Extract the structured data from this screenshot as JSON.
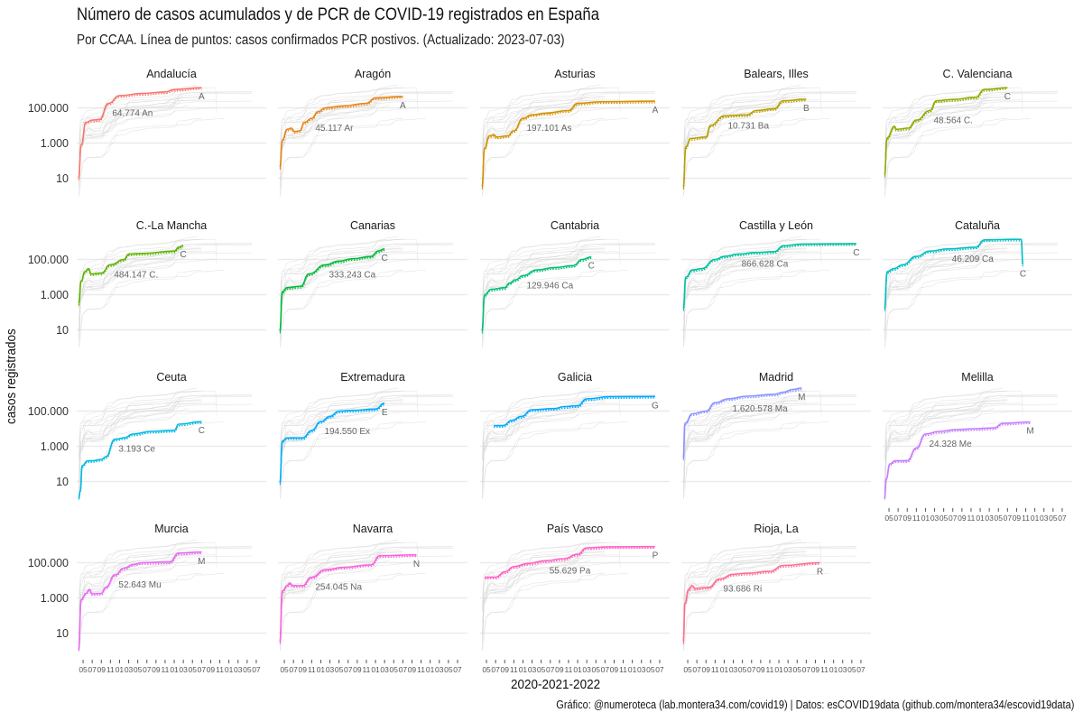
{
  "chart_data": {
    "type": "line",
    "title": "Número de casos acumulados y de PCR de COVID-19 registrados en España",
    "subtitle": "Por CCAA. Línea de puntos: casos confirmados PCR postivos. (Actualizado: 2023-07-03)",
    "xlabel": "2020-2021-2022",
    "ylabel": "casos registrados",
    "caption": "Gráfico: @numeroteca (lab.montera34.com/covid19) | Datos: esCOVID19data (github.com/montera34/escovid19data)",
    "y_scale": "log10",
    "ylim": [
      1,
      1000000
    ],
    "y_ticks": [
      {
        "value": 100000,
        "label": "100.000"
      },
      {
        "value": 1000,
        "label": "1.000"
      },
      {
        "value": 10,
        "label": "10"
      }
    ],
    "x_tick_labels": [
      "05",
      "07",
      "09",
      "11",
      "01",
      "03",
      "05",
      "07",
      "09",
      "11",
      "01",
      "03",
      "05",
      "07",
      "09",
      "11",
      "01",
      "03",
      "05",
      "07"
    ],
    "x_range_months": [
      0,
      20
    ],
    "grid": true,
    "legend": "none",
    "facets": [
      {
        "name": "Andalucía",
        "color": "#F8766D",
        "end_month": 13.5,
        "label": "64.774 An",
        "label_short": "A",
        "final_cases": 1500000,
        "points": [
          [
            0,
            10
          ],
          [
            0.3,
            800
          ],
          [
            0.8,
            15000
          ],
          [
            1.5,
            20000
          ],
          [
            2.3,
            22000
          ],
          [
            3.3,
            180000
          ],
          [
            4.5,
            500000
          ],
          [
            7,
            650000
          ],
          [
            9.5,
            800000
          ],
          [
            10.5,
            1100000
          ],
          [
            13.5,
            1400000
          ]
        ]
      },
      {
        "name": "Aragón",
        "color": "#E7861B",
        "end_month": 13.5,
        "label": "45.117 Ar",
        "label_short": "A",
        "final_cases": 420000,
        "points": [
          [
            0,
            40
          ],
          [
            0.3,
            1500
          ],
          [
            0.8,
            6000
          ],
          [
            1.3,
            7000
          ],
          [
            1.6,
            4500
          ],
          [
            2.2,
            5000
          ],
          [
            2.7,
            15000
          ],
          [
            3.5,
            25000
          ],
          [
            4.2,
            60000
          ],
          [
            5,
            100000
          ],
          [
            7,
            130000
          ],
          [
            9.5,
            180000
          ],
          [
            10.5,
            370000
          ],
          [
            13.5,
            450000
          ]
        ]
      },
      {
        "name": "Asturias",
        "color": "#D39200",
        "end_month": 19,
        "label": "197.101 As",
        "label_short": "A",
        "final_cases": 250000,
        "points": [
          [
            0,
            3
          ],
          [
            0.3,
            500
          ],
          [
            0.8,
            2500
          ],
          [
            1.3,
            3000
          ],
          [
            1.6,
            2200
          ],
          [
            2.8,
            2500
          ],
          [
            3.5,
            5000
          ],
          [
            4.5,
            25000
          ],
          [
            5.5,
            40000
          ],
          [
            7,
            50000
          ],
          [
            9.5,
            70000
          ],
          [
            10.5,
            180000
          ],
          [
            13,
            220000
          ],
          [
            19,
            240000
          ]
        ]
      },
      {
        "name": "Balears, Illes",
        "color": "#B79F00",
        "end_month": 13.5,
        "label": "10.731 Ba",
        "label_short": "B",
        "final_cases": 330000,
        "points": [
          [
            0,
            3
          ],
          [
            0.3,
            600
          ],
          [
            0.8,
            1800
          ],
          [
            2.5,
            2200
          ],
          [
            3,
            10000
          ],
          [
            4.5,
            35000
          ],
          [
            7,
            40000
          ],
          [
            8,
            70000
          ],
          [
            10,
            90000
          ],
          [
            11,
            250000
          ],
          [
            13.5,
            310000
          ]
        ]
      },
      {
        "name": "C. Valenciana",
        "color": "#93AA00",
        "end_month": 13.5,
        "label": "48.564 C.",
        "label_short": "C",
        "final_cases": 1600000,
        "points": [
          [
            0,
            15
          ],
          [
            0.3,
            2000
          ],
          [
            1.1,
            9000
          ],
          [
            1.3,
            6000
          ],
          [
            2.6,
            7000
          ],
          [
            3.5,
            20000
          ],
          [
            5,
            70000
          ],
          [
            5.7,
            250000
          ],
          [
            7.5,
            300000
          ],
          [
            10,
            400000
          ],
          [
            11,
            1100000
          ],
          [
            13.5,
            1400000
          ]
        ]
      },
      {
        "name": "C.-La Mancha",
        "color": "#5EB300",
        "end_month": 13.5,
        "label": "484.147 C.",
        "label_short": "C",
        "final_cases": 650000,
        "points": [
          [
            0,
            300
          ],
          [
            0.3,
            6000
          ],
          [
            0.7,
            20000
          ],
          [
            1.1,
            30000
          ],
          [
            1.4,
            15000
          ],
          [
            2.5,
            17000
          ],
          [
            3.5,
            50000
          ],
          [
            5,
            100000
          ],
          [
            5.5,
            200000
          ],
          [
            7,
            220000
          ],
          [
            10.5,
            300000
          ],
          [
            11,
            500000
          ],
          [
            11.5,
            620000
          ]
        ]
      },
      {
        "name": "Canarias",
        "color": "#00BA38",
        "end_month": 13.5,
        "label": "333.243 Ca",
        "label_short": "C",
        "final_cases": 500000,
        "points": [
          [
            0,
            8
          ],
          [
            0.3,
            1500
          ],
          [
            0.8,
            2500
          ],
          [
            2.3,
            3000
          ],
          [
            3.2,
            15000
          ],
          [
            5,
            50000
          ],
          [
            6.5,
            80000
          ],
          [
            8,
            110000
          ],
          [
            10,
            150000
          ],
          [
            10.8,
            300000
          ],
          [
            11.5,
            400000
          ]
        ]
      },
      {
        "name": "Cantabria",
        "color": "#00BF74",
        "end_month": 13,
        "label": "129.946 Ca",
        "label_short": "C",
        "final_cases": 220000,
        "points": [
          [
            0,
            8
          ],
          [
            0.3,
            1000
          ],
          [
            1,
            2000
          ],
          [
            2.5,
            2500
          ],
          [
            3,
            4500
          ],
          [
            3.7,
            7000
          ],
          [
            4.5,
            12000
          ],
          [
            6,
            25000
          ],
          [
            8,
            35000
          ],
          [
            10,
            45000
          ],
          [
            11,
            100000
          ],
          [
            12,
            140000
          ]
        ]
      },
      {
        "name": "Castilla y León",
        "color": "#00C19F",
        "end_month": 19,
        "label": "866.628 Ca",
        "label_short": "C",
        "final_cases": 870000,
        "points": [
          [
            0,
            150
          ],
          [
            0.3,
            10000
          ],
          [
            1,
            25000
          ],
          [
            2,
            30000
          ],
          [
            3.5,
            100000
          ],
          [
            4.5,
            150000
          ],
          [
            6,
            200000
          ],
          [
            8,
            250000
          ],
          [
            10,
            280000
          ],
          [
            11,
            600000
          ],
          [
            13,
            750000
          ],
          [
            19,
            800000
          ]
        ]
      },
      {
        "name": "Cataluña",
        "color": "#00BFC4",
        "end_month": 16,
        "label": "46.209 Ca",
        "label_short": "C",
        "final_cases": 2700000,
        "points": [
          [
            0,
            150
          ],
          [
            0.3,
            20000
          ],
          [
            1,
            30000
          ],
          [
            2,
            50000
          ],
          [
            3.5,
            150000
          ],
          [
            5,
            300000
          ],
          [
            7,
            400000
          ],
          [
            10,
            500000
          ],
          [
            11,
            1300000
          ],
          [
            14,
            1400000
          ],
          [
            15,
            1400000
          ],
          [
            15.2,
            50000
          ]
        ]
      },
      {
        "name": "Ceuta",
        "color": "#00B9E3",
        "end_month": 13.5,
        "label": "3.193 Ce",
        "label_short": "C",
        "final_cases": 24000,
        "points": [
          [
            0,
            1
          ],
          [
            0.2,
            3
          ],
          [
            0.4,
            80
          ],
          [
            1,
            150
          ],
          [
            1.5,
            150
          ],
          [
            2.5,
            180
          ],
          [
            3,
            250
          ],
          [
            4,
            2500
          ],
          [
            5,
            3000
          ],
          [
            6,
            5000
          ],
          [
            8,
            7000
          ],
          [
            10.5,
            8000
          ],
          [
            11,
            18000
          ],
          [
            13.5,
            25000
          ]
        ]
      },
      {
        "name": "Extremadura",
        "color": "#00ADFA",
        "end_month": 13.5,
        "label": "194.550 Ex",
        "label_short": "E",
        "final_cases": 300000,
        "points": [
          [
            0,
            8
          ],
          [
            0.3,
            2000
          ],
          [
            0.8,
            3000
          ],
          [
            2.5,
            3000
          ],
          [
            3.5,
            8000
          ],
          [
            4.5,
            25000
          ],
          [
            5.5,
            50000
          ],
          [
            6.5,
            100000
          ],
          [
            8,
            110000
          ],
          [
            10.5,
            130000
          ],
          [
            11.5,
            280000
          ]
        ]
      },
      {
        "name": "Galicia",
        "color": "#00A9FF",
        "end_month": 19,
        "label": "",
        "label_short": "G",
        "final_cases": 700000,
        "points": [
          [
            1.3,
            15000
          ],
          [
            2.3,
            15000
          ],
          [
            3.3,
            30000
          ],
          [
            4.3,
            50000
          ],
          [
            5.5,
            120000
          ],
          [
            8,
            140000
          ],
          [
            9,
            180000
          ],
          [
            10.5,
            200000
          ],
          [
            11.5,
            500000
          ],
          [
            14,
            650000
          ],
          [
            19,
            680000
          ]
        ]
      },
      {
        "name": "Madrid",
        "color": "#8B93FF",
        "end_month": 13.5,
        "label": "1.620.578 Ma",
        "label_short": "M",
        "final_cases": 1900000,
        "points": [
          [
            0,
            200
          ],
          [
            0.2,
            20000
          ],
          [
            1,
            70000
          ],
          [
            2.5,
            100000
          ],
          [
            3.5,
            300000
          ],
          [
            5,
            500000
          ],
          [
            7,
            700000
          ],
          [
            10,
            900000
          ],
          [
            11,
            1200000
          ],
          [
            12,
            1700000
          ],
          [
            13,
            2000000
          ]
        ]
      },
      {
        "name": "Melilla",
        "color": "#C77CFF",
        "end_month": 16,
        "label": "24.328 Me",
        "label_short": "M",
        "final_cases": 24000,
        "points": [
          [
            0,
            1
          ],
          [
            0.2,
            15
          ],
          [
            0.6,
            100
          ],
          [
            1.2,
            150
          ],
          [
            2.5,
            150
          ],
          [
            3.5,
            800
          ],
          [
            4.5,
            5000
          ],
          [
            6,
            7000
          ],
          [
            8,
            9000
          ],
          [
            10,
            10000
          ],
          [
            12,
            11000
          ],
          [
            13,
            20000
          ],
          [
            16,
            24000
          ]
        ]
      },
      {
        "name": "Murcia",
        "color": "#E76BF3",
        "end_month": 13.5,
        "label": "52.643 Mu",
        "label_short": "M",
        "final_cases": 600000,
        "points": [
          [
            0,
            1
          ],
          [
            0.3,
            800
          ],
          [
            0.8,
            1800
          ],
          [
            1.2,
            3000
          ],
          [
            1.5,
            1700
          ],
          [
            2.5,
            1800
          ],
          [
            3,
            4000
          ],
          [
            4,
            20000
          ],
          [
            5,
            50000
          ],
          [
            6,
            80000
          ],
          [
            7,
            100000
          ],
          [
            10,
            110000
          ],
          [
            11,
            350000
          ],
          [
            13.5,
            400000
          ]
        ]
      },
      {
        "name": "Navarra",
        "color": "#FA62DB",
        "end_month": 16,
        "label": "254.045 Na",
        "label_short": "N",
        "final_cases": 270000,
        "points": [
          [
            0,
            3
          ],
          [
            0.3,
            2500
          ],
          [
            0.8,
            5000
          ],
          [
            1.1,
            7000
          ],
          [
            1.4,
            5000
          ],
          [
            2.5,
            5000
          ],
          [
            3.5,
            15000
          ],
          [
            5,
            40000
          ],
          [
            7,
            55000
          ],
          [
            10,
            75000
          ],
          [
            11,
            250000
          ],
          [
            15,
            280000
          ]
        ]
      },
      {
        "name": "País Vasco",
        "color": "#FF61C3",
        "end_month": 19,
        "label": "55.629 Pa",
        "label_short": "P",
        "final_cases": 900000,
        "points": [
          [
            0.3,
            15000
          ],
          [
            1.5,
            15000
          ],
          [
            2.5,
            30000
          ],
          [
            3.5,
            60000
          ],
          [
            5,
            90000
          ],
          [
            7,
            130000
          ],
          [
            9,
            170000
          ],
          [
            10.5,
            300000
          ],
          [
            11.5,
            700000
          ],
          [
            14,
            800000
          ],
          [
            19,
            820000
          ]
        ]
      },
      {
        "name": "Rioja, La",
        "color": "#FF6C91",
        "end_month": 16,
        "label": "93.686 Ri",
        "label_short": "R",
        "final_cases": 100000,
        "points": [
          [
            0,
            3
          ],
          [
            0.2,
            500
          ],
          [
            0.6,
            3000
          ],
          [
            1,
            5000
          ],
          [
            1.3,
            3500
          ],
          [
            2.8,
            4000
          ],
          [
            4,
            12000
          ],
          [
            5.5,
            22000
          ],
          [
            7,
            25000
          ],
          [
            9.5,
            32000
          ],
          [
            11,
            70000
          ],
          [
            15,
            100000
          ]
        ]
      }
    ]
  }
}
